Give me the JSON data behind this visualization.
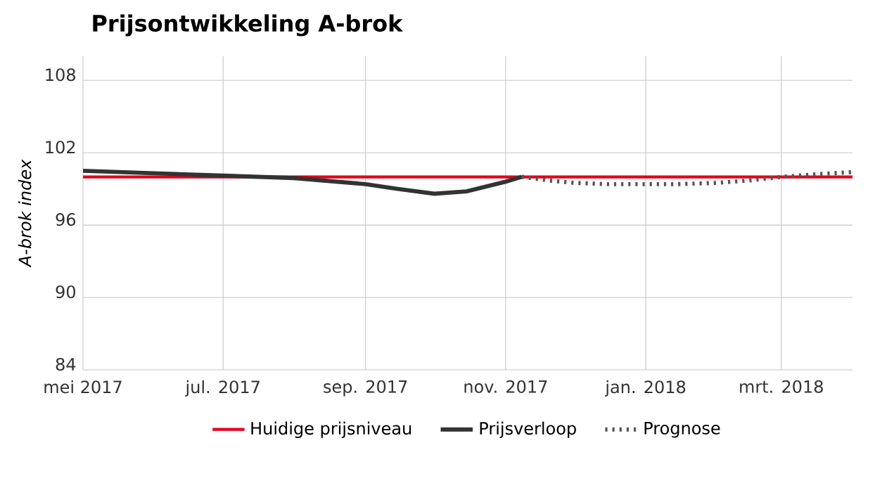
{
  "chart_data": {
    "type": "line",
    "title": "Prijsontwikkeling A-brok",
    "ylabel": "A-brok index",
    "series": [
      {
        "name": "Huidige prijsniveau",
        "color": "#e3001b",
        "line_style": "solid",
        "x": [
          "2017-05-01",
          "2018-04-01"
        ],
        "values": [
          100,
          100
        ]
      },
      {
        "name": "Prijsverloop",
        "color": "#333333",
        "line_style": "solid",
        "x": [
          "2017-05-01",
          "2017-06-01",
          "2017-07-01",
          "2017-08-01",
          "2017-09-01",
          "2017-09-15",
          "2017-10-01",
          "2017-10-15",
          "2017-11-01",
          "2017-11-08"
        ],
        "values": [
          100.5,
          100.3,
          100.1,
          99.9,
          99.4,
          99.0,
          98.6,
          98.8,
          99.6,
          100.0
        ]
      },
      {
        "name": "Prognose",
        "color": "#555555",
        "line_style": "dotted",
        "x": [
          "2017-11-08",
          "2017-11-20",
          "2017-12-01",
          "2017-12-15",
          "2018-01-01",
          "2018-01-15",
          "2018-02-01",
          "2018-02-15",
          "2018-03-01",
          "2018-03-15",
          "2018-04-01"
        ],
        "values": [
          100.0,
          99.7,
          99.5,
          99.4,
          99.4,
          99.4,
          99.5,
          99.7,
          100.0,
          100.2,
          100.4
        ]
      }
    ],
    "xlim": [
      "2017-05-01",
      "2018-04-01"
    ],
    "xticks": [
      {
        "value": "2017-05-01",
        "label": "mei 2017"
      },
      {
        "value": "2017-07-01",
        "label": "jul. 2017"
      },
      {
        "value": "2017-09-01",
        "label": "sep. 2017"
      },
      {
        "value": "2017-11-01",
        "label": "nov. 2017"
      },
      {
        "value": "2018-01-01",
        "label": "jan. 2018"
      },
      {
        "value": "2018-03-01",
        "label": "mrt. 2018"
      }
    ],
    "ylim": [
      84,
      110
    ],
    "yticks": [
      84,
      90,
      96,
      102,
      108
    ],
    "grid": true,
    "legend": "bottom"
  }
}
